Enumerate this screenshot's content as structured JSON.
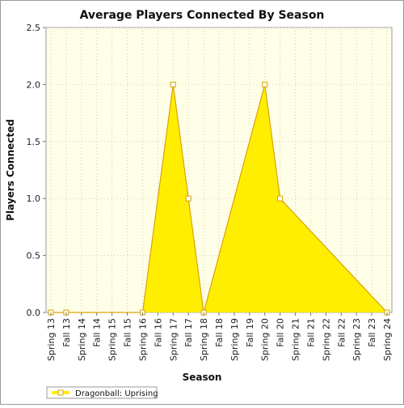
{
  "chart_data": {
    "type": "area",
    "title": "Average Players Connected By Season",
    "xlabel": "Season",
    "ylabel": "Players Connected",
    "categories": [
      "Spring 13",
      "Fall 13",
      "Spring 14",
      "Fall 14",
      "Spring 15",
      "Fall 15",
      "Spring 16",
      "Fall 16",
      "Spring 17",
      "Fall 17",
      "Spring 18",
      "Fall 18",
      "Spring 19",
      "Fall 19",
      "Spring 20",
      "Fall 20",
      "Spring 21",
      "Fall 21",
      "Spring 22",
      "Fall 22",
      "Spring 23",
      "Fall 23",
      "Spring 24"
    ],
    "ylim": [
      0,
      2.5
    ],
    "yticks": [
      "0.0",
      "0.5",
      "1.0",
      "1.5",
      "2.0",
      "2.5"
    ],
    "grid": true,
    "legend_position": "bottom-left",
    "series": [
      {
        "name": "Dragonball: Uprising",
        "color": "#ffee00",
        "line_color": "#d9a300",
        "points": [
          {
            "x": "Spring 13",
            "y": 0
          },
          {
            "x": "Fall 13",
            "y": 0
          },
          {
            "x": "Spring 16",
            "y": 0
          },
          {
            "x": "Spring 17",
            "y": 2.0
          },
          {
            "x": "Fall 17",
            "y": 1.0
          },
          {
            "x": "Spring 18",
            "y": 0
          },
          {
            "x": "Spring 20",
            "y": 2.0
          },
          {
            "x": "Fall 20",
            "y": 1.0
          },
          {
            "x": "Spring 24",
            "y": 0
          }
        ]
      }
    ]
  }
}
